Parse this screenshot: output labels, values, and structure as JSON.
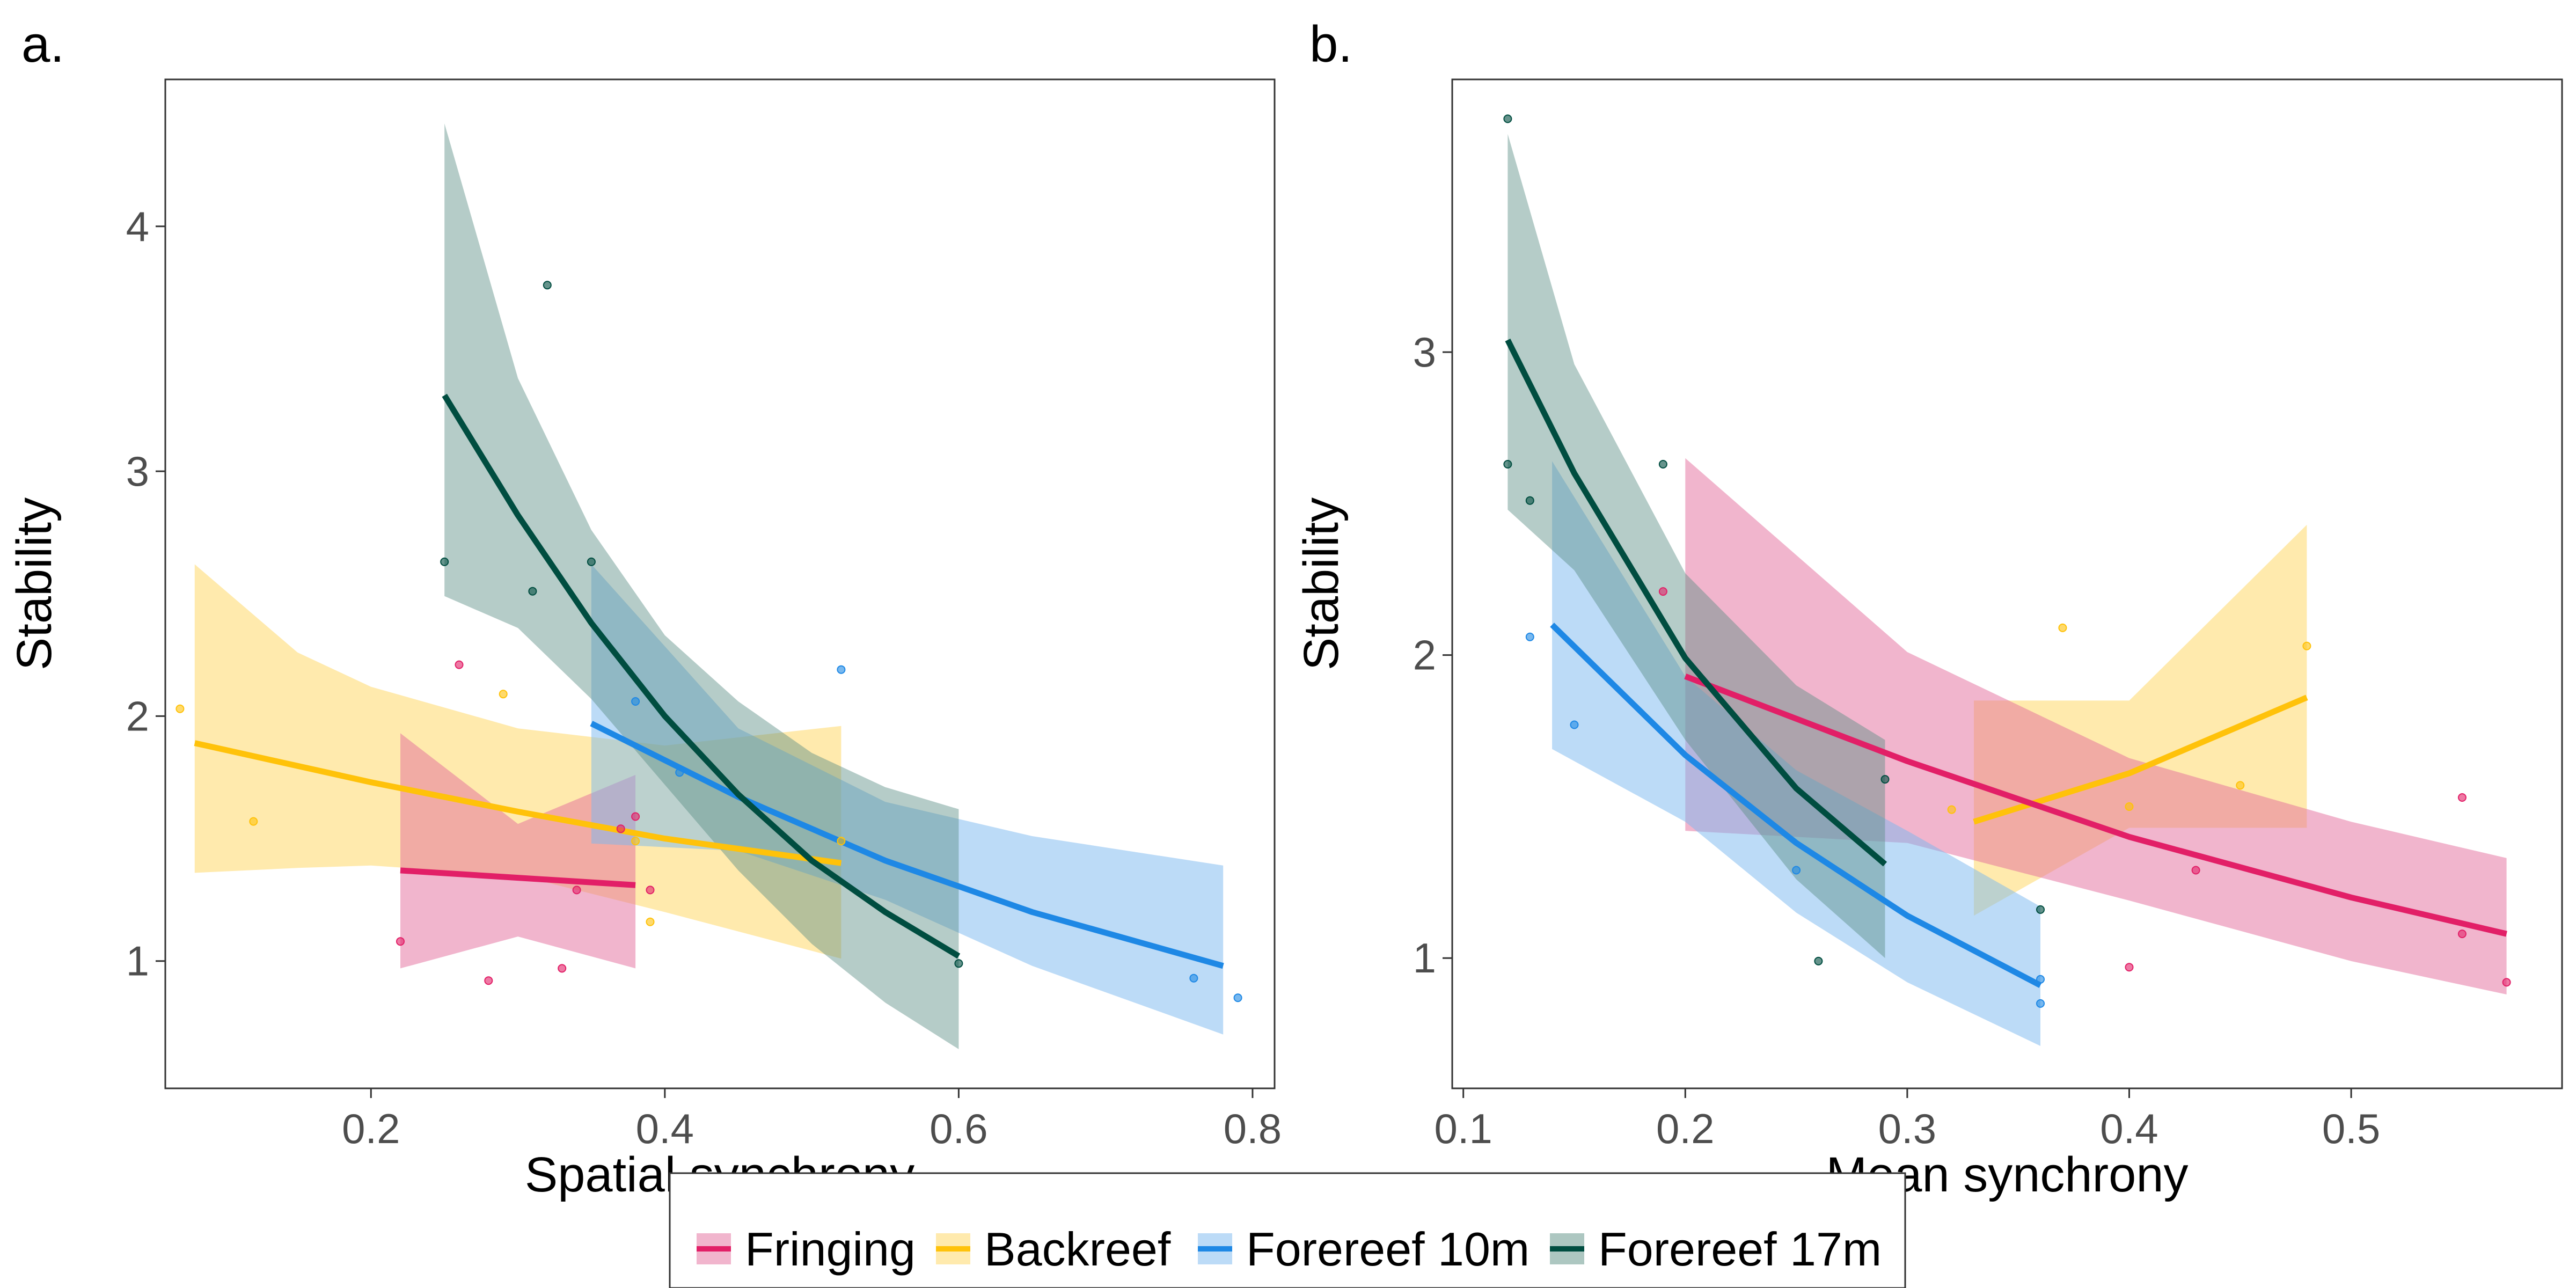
{
  "colors": {
    "fringing": "#e21f67",
    "backreef": "#ffc20a",
    "forereef10": "#1e88e5",
    "forereef17": "#004d40",
    "fringing_band": "#e36b9b",
    "backreef_band": "#ffd65c",
    "forereef10_band": "#7ab8f0",
    "forereef17_band": "#5c8f84"
  },
  "legend": {
    "items": [
      {
        "key": "fringing",
        "label": "Fringing"
      },
      {
        "key": "backreef",
        "label": "Backreef"
      },
      {
        "key": "forereef10",
        "label": "Forereef 10m"
      },
      {
        "key": "forereef17",
        "label": "Forereef 17m"
      }
    ]
  },
  "chart_data": [
    {
      "type": "scatter",
      "panel_label": "a.",
      "xlabel": "Spatial synchrony",
      "ylabel": "Stability",
      "xlim": [
        0.06,
        0.815
      ],
      "ylim": [
        0.48,
        4.6
      ],
      "xticks": [
        0.2,
        0.4,
        0.6,
        0.8
      ],
      "xtick_labels": [
        "0.2",
        "0.4",
        "0.6",
        "0.8"
      ],
      "yticks": [
        1,
        2,
        3,
        4
      ],
      "ytick_labels": [
        "1",
        "2",
        "3",
        "4"
      ],
      "grid": false,
      "series": [
        {
          "name": "Fringing",
          "key": "fringing",
          "points": [
            [
              0.22,
              1.08
            ],
            [
              0.26,
              2.21
            ],
            [
              0.28,
              0.92
            ],
            [
              0.33,
              0.97
            ],
            [
              0.34,
              1.29
            ],
            [
              0.37,
              1.54
            ],
            [
              0.38,
              1.59
            ],
            [
              0.39,
              1.29
            ]
          ],
          "fit": {
            "x": [
              0.22,
              0.3,
              0.38
            ],
            "y": [
              1.37,
              1.34,
              1.31
            ]
          },
          "band": {
            "x": [
              0.22,
              0.3,
              0.38
            ],
            "lower": [
              0.97,
              1.1,
              0.97
            ],
            "upper": [
              1.93,
              1.56,
              1.76
            ]
          }
        },
        {
          "name": "Backreef",
          "key": "backreef",
          "points": [
            [
              0.07,
              2.03
            ],
            [
              0.12,
              1.57
            ],
            [
              0.29,
              2.09
            ],
            [
              0.38,
              1.49
            ],
            [
              0.39,
              1.16
            ],
            [
              0.52,
              1.49
            ]
          ],
          "fit": {
            "x": [
              0.08,
              0.2,
              0.3,
              0.4,
              0.52
            ],
            "y": [
              1.89,
              1.73,
              1.61,
              1.5,
              1.4
            ]
          },
          "band": {
            "x": [
              0.08,
              0.15,
              0.2,
              0.3,
              0.4,
              0.52
            ],
            "lower": [
              1.36,
              1.38,
              1.39,
              1.35,
              1.2,
              1.01
            ],
            "upper": [
              2.62,
              2.26,
              2.12,
              1.95,
              1.88,
              1.96
            ]
          }
        },
        {
          "name": "Forereef 10m",
          "key": "forereef10",
          "points": [
            [
              0.38,
              2.06
            ],
            [
              0.41,
              1.77
            ],
            [
              0.52,
              2.19
            ],
            [
              0.76,
              0.93
            ],
            [
              0.79,
              0.85
            ]
          ],
          "fit": {
            "x": [
              0.35,
              0.45,
              0.55,
              0.65,
              0.78
            ],
            "y": [
              1.97,
              1.67,
              1.41,
              1.2,
              0.98
            ]
          },
          "band": {
            "x": [
              0.35,
              0.45,
              0.55,
              0.65,
              0.78
            ],
            "lower": [
              1.48,
              1.45,
              1.25,
              0.98,
              0.7
            ],
            "upper": [
              2.62,
              1.95,
              1.65,
              1.51,
              1.39
            ]
          }
        },
        {
          "name": "Forereef 17m",
          "key": "forereef17",
          "points": [
            [
              0.25,
              2.63
            ],
            [
              0.31,
              2.51
            ],
            [
              0.32,
              3.76
            ],
            [
              0.35,
              2.63
            ],
            [
              0.6,
              0.99
            ]
          ],
          "fit": {
            "x": [
              0.25,
              0.3,
              0.35,
              0.4,
              0.45,
              0.5,
              0.55,
              0.6
            ],
            "y": [
              3.31,
              2.82,
              2.38,
              2.0,
              1.68,
              1.41,
              1.2,
              1.02
            ]
          },
          "band": {
            "x": [
              0.25,
              0.3,
              0.35,
              0.4,
              0.45,
              0.5,
              0.55,
              0.6
            ],
            "lower": [
              2.49,
              2.36,
              2.07,
              1.72,
              1.37,
              1.07,
              0.83,
              0.64
            ],
            "upper": [
              4.42,
              3.38,
              2.76,
              2.33,
              2.06,
              1.85,
              1.71,
              1.62
            ]
          }
        }
      ]
    },
    {
      "type": "scatter",
      "panel_label": "b.",
      "xlabel": "Mean synchrony",
      "ylabel": "Stability",
      "xlim": [
        0.095,
        0.595
      ],
      "ylim": [
        0.57,
        3.9
      ],
      "xticks": [
        0.1,
        0.2,
        0.3,
        0.4,
        0.5
      ],
      "xtick_labels": [
        "0.1",
        "0.2",
        "0.3",
        "0.4",
        "0.5"
      ],
      "yticks": [
        1,
        2,
        3
      ],
      "ytick_labels": [
        "1",
        "2",
        "3"
      ],
      "grid": false,
      "series": [
        {
          "name": "Fringing",
          "key": "fringing",
          "points": [
            [
              0.19,
              2.21
            ],
            [
              0.43,
              1.29
            ],
            [
              0.4,
              0.97
            ],
            [
              0.55,
              1.53
            ],
            [
              0.55,
              1.08
            ],
            [
              0.57,
              0.92
            ]
          ],
          "fit": {
            "x": [
              0.2,
              0.3,
              0.4,
              0.5,
              0.57
            ],
            "y": [
              1.93,
              1.65,
              1.4,
              1.2,
              1.08
            ]
          },
          "band": {
            "x": [
              0.2,
              0.3,
              0.4,
              0.5,
              0.57
            ],
            "lower": [
              1.42,
              1.38,
              1.19,
              0.99,
              0.88
            ],
            "upper": [
              2.65,
              2.01,
              1.66,
              1.45,
              1.33
            ]
          }
        },
        {
          "name": "Backreef",
          "key": "backreef",
          "points": [
            [
              0.32,
              1.49
            ],
            [
              0.37,
              2.09
            ],
            [
              0.4,
              1.5
            ],
            [
              0.45,
              1.57
            ],
            [
              0.48,
              2.03
            ]
          ],
          "fit": {
            "x": [
              0.33,
              0.4,
              0.48
            ],
            "y": [
              1.45,
              1.61,
              1.86
            ]
          },
          "band": {
            "x": [
              0.33,
              0.4,
              0.48
            ],
            "lower": [
              1.14,
              1.43,
              1.43
            ],
            "upper": [
              1.85,
              1.85,
              2.43
            ]
          }
        },
        {
          "name": "Forereef 10m",
          "key": "forereef10",
          "points": [
            [
              0.13,
              2.06
            ],
            [
              0.15,
              1.77
            ],
            [
              0.25,
              1.29
            ],
            [
              0.36,
              0.93
            ],
            [
              0.36,
              0.85
            ]
          ],
          "fit": {
            "x": [
              0.14,
              0.2,
              0.25,
              0.3,
              0.36
            ],
            "y": [
              2.1,
              1.67,
              1.38,
              1.14,
              0.91
            ]
          },
          "band": {
            "x": [
              0.14,
              0.2,
              0.25,
              0.3,
              0.36
            ],
            "lower": [
              1.69,
              1.45,
              1.15,
              0.92,
              0.71
            ],
            "upper": [
              2.64,
              1.93,
              1.62,
              1.42,
              1.17
            ]
          }
        },
        {
          "name": "Forereef 17m",
          "key": "forereef17",
          "points": [
            [
              0.12,
              3.77
            ],
            [
              0.12,
              2.63
            ],
            [
              0.13,
              2.51
            ],
            [
              0.19,
              2.63
            ],
            [
              0.26,
              0.99
            ],
            [
              0.29,
              1.59
            ],
            [
              0.36,
              1.16
            ]
          ],
          "fit": {
            "x": [
              0.12,
              0.15,
              0.2,
              0.25,
              0.29
            ],
            "y": [
              3.04,
              2.6,
              1.99,
              1.56,
              1.31
            ]
          },
          "band": {
            "x": [
              0.12,
              0.15,
              0.2,
              0.25,
              0.29
            ],
            "lower": [
              2.48,
              2.28,
              1.72,
              1.26,
              1.0
            ],
            "upper": [
              3.72,
              2.96,
              2.27,
              1.9,
              1.72
            ]
          }
        }
      ]
    }
  ]
}
